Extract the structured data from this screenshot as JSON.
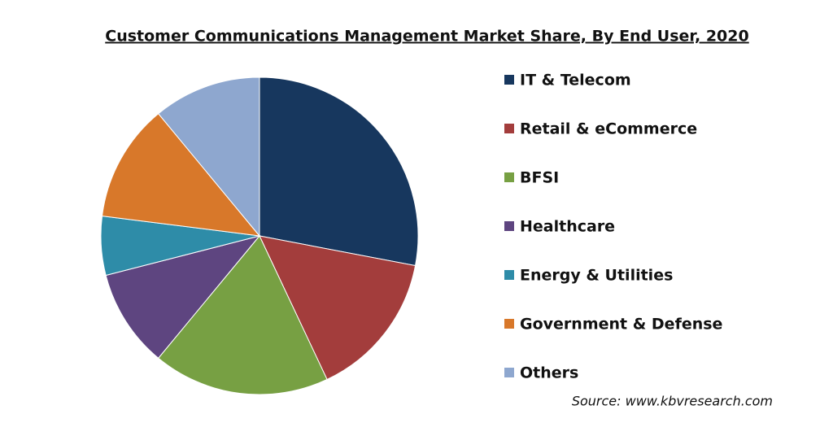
{
  "chart_data": {
    "type": "pie",
    "title": "Customer Communications Management Market Share, By End User, 2020",
    "categories": [
      "IT & Telecom",
      "Retail & eCommerce",
      "BFSI",
      "Healthcare",
      "Energy & Utilities",
      "Government & Defense",
      "Others"
    ],
    "values": [
      28,
      15,
      18,
      10,
      6,
      12,
      11
    ],
    "colors": [
      "#17375e",
      "#a33d3c",
      "#77a043",
      "#5e4580",
      "#2e8ca8",
      "#d8782a",
      "#8ea7cf"
    ],
    "legend": "right",
    "source": "Source: www.kbvresearch.com"
  }
}
